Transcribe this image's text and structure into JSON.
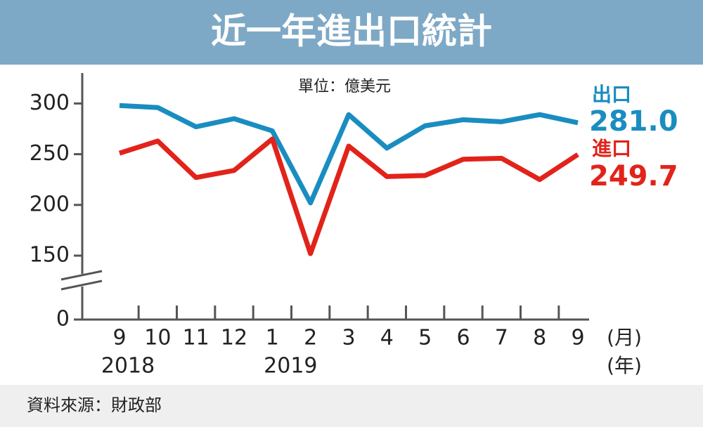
{
  "chart_data": {
    "type": "line",
    "title": "近一年進出口統計",
    "subtitle": "單位：億美元",
    "source": "資料來源：財政部",
    "x_unit": "(月)",
    "x_year_unit": "(年)",
    "categories": [
      "9",
      "10",
      "11",
      "12",
      "1",
      "2",
      "3",
      "4",
      "5",
      "6",
      "7",
      "8",
      "9"
    ],
    "x_year_labels": [
      "2018",
      null,
      null,
      null,
      "2019",
      null,
      null,
      null,
      null,
      null,
      null,
      null,
      null
    ],
    "ylim": [
      0,
      330
    ],
    "yticks": [
      0,
      150,
      200,
      250,
      300
    ],
    "axis_break": true,
    "series": [
      {
        "name": "出口",
        "color": "#1a8dc0",
        "values": [
          298,
          296,
          277,
          285,
          273,
          202,
          289,
          256,
          278,
          284,
          282,
          289,
          281.0
        ],
        "value_labels": [
          null,
          null,
          null,
          null,
          null,
          null,
          null,
          null,
          null,
          null,
          null,
          null,
          "281.0"
        ]
      },
      {
        "name": "進口",
        "color": "#e2231a",
        "values": [
          251,
          263,
          227,
          234,
          265,
          152,
          258,
          228,
          229,
          245,
          246,
          225,
          249.7
        ],
        "value_labels": [
          null,
          null,
          null,
          null,
          null,
          null,
          null,
          null,
          null,
          null,
          null,
          null,
          "249.7"
        ]
      }
    ]
  }
}
